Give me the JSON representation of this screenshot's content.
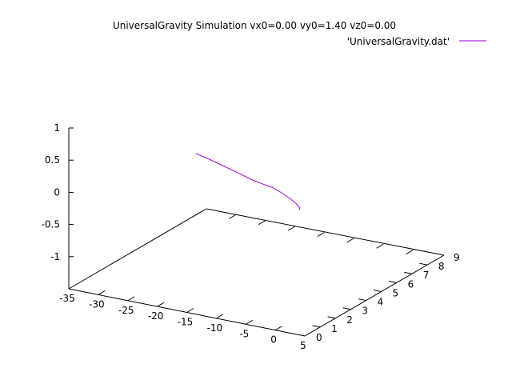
{
  "chart_data": {
    "type": "line",
    "title": "UniversalGravity Simulation vx0=0.00 vy0=1.40 vz0=0.00",
    "view": "3d-perspective",
    "grid": false,
    "legend_position": "top-right",
    "axes": {
      "x": {
        "range": [
          -35,
          5
        ],
        "ticks": [
          -35,
          -30,
          -25,
          -20,
          -15,
          -10,
          -5,
          0,
          5
        ],
        "label": ""
      },
      "y": {
        "range": [
          0,
          9
        ],
        "ticks": [
          0,
          1,
          2,
          3,
          4,
          5,
          6,
          7,
          8,
          9
        ],
        "label": ""
      },
      "z": {
        "range": [
          -1.5,
          1
        ],
        "ticks": [
          1,
          0.5,
          0,
          -0.5,
          -1
        ],
        "label": ""
      }
    },
    "series": [
      {
        "name": "'UniversalGravity.dat'",
        "color": "#9400d3",
        "points": [
          [
            -13.5,
            0.0,
            1.0
          ],
          [
            -12.2,
            0.5,
            0.85
          ],
          [
            -11.2,
            1.0,
            0.7
          ],
          [
            -10.2,
            1.5,
            0.55
          ],
          [
            -9.4,
            2.0,
            0.4
          ],
          [
            -8.7,
            2.5,
            0.27
          ],
          [
            -8.2,
            3.0,
            0.15
          ],
          [
            -7.9,
            3.5,
            0.0
          ],
          [
            -7.9,
            4.0,
            -0.15
          ],
          [
            -8.2,
            4.5,
            -0.3
          ],
          [
            -8.8,
            5.0,
            -0.45
          ],
          [
            -9.8,
            5.35,
            -0.55
          ]
        ]
      }
    ]
  }
}
